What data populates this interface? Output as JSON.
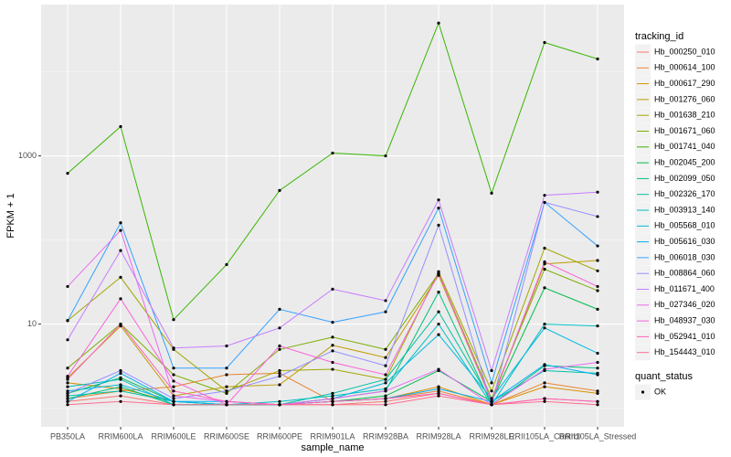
{
  "chart_data": {
    "type": "line",
    "x_label": "sample_name",
    "y_label": "FPKM + 1",
    "categories": [
      "PB350LA",
      "RRIM600LA",
      "RRIM600LE",
      "RRIM600SE",
      "RRIM600PE",
      "RRIM901LA",
      "RRIM928BA",
      "RRIM928LA",
      "RRIM928LE",
      "RRII105LA_Control",
      "RRII105LA_Stressed"
    ],
    "ylog": true,
    "ylim": [
      0.6,
      63000
    ],
    "yticks": [
      10,
      1000
    ],
    "grid": true,
    "legend_title": "tracking_id",
    "legend_position": "right",
    "status_legend_title": "quant_status",
    "status_legend_labels": [
      "OK"
    ],
    "point_color": "#000000",
    "series": [
      {
        "name": "Hb_000250_010",
        "color": "#F8766D",
        "values": [
          1.2,
          1.4,
          1.1,
          1.1,
          1.1,
          1.1,
          1.2,
          1.5,
          1.1,
          1.3,
          1.2
        ]
      },
      {
        "name": "Hb_000614_100",
        "color": "#EA8331",
        "values": [
          1.3,
          1.6,
          1.8,
          2.5,
          2.6,
          1.2,
          1.3,
          1.6,
          1.1,
          2.0,
          1.6
        ]
      },
      {
        "name": "Hb_000617_290",
        "color": "#D89000",
        "values": [
          2.0,
          1.7,
          1.2,
          1.1,
          1.1,
          1.2,
          1.3,
          1.8,
          1.1,
          1.8,
          1.5
        ]
      },
      {
        "name": "Hb_001276_060",
        "color": "#C09B00",
        "values": [
          2.3,
          9.5,
          1.4,
          1.8,
          1.9,
          5.6,
          4.0,
          38,
          1.2,
          52,
          57
        ]
      },
      {
        "name": "Hb_001638_210",
        "color": "#A3A500",
        "values": [
          11,
          36,
          5.0,
          1.6,
          2.8,
          2.9,
          2.2,
          42,
          1.6,
          80,
          43
        ]
      },
      {
        "name": "Hb_001671_060",
        "color": "#7CAE00",
        "values": [
          3.0,
          10,
          2.5,
          1.5,
          5.0,
          7.0,
          5.0,
          40,
          1.3,
          45,
          25
        ]
      },
      {
        "name": "Hb_001741_040",
        "color": "#39B600",
        "values": [
          620,
          2230,
          11.3,
          51,
          388,
          1080,
          1000,
          38000,
          360,
          22300,
          14200
        ]
      },
      {
        "name": "Hb_002045_200",
        "color": "#00BB4E",
        "values": [
          1.5,
          2.3,
          1.2,
          1.1,
          1.1,
          1.2,
          1.4,
          2.8,
          1.2,
          27,
          15
        ]
      },
      {
        "name": "Hb_002099_050",
        "color": "#00BF7D",
        "values": [
          1.3,
          1.8,
          1.1,
          1.1,
          1.1,
          1.3,
          1.6,
          24,
          1.1,
          3.2,
          3.0
        ]
      },
      {
        "name": "Hb_002326_170",
        "color": "#00C1A3",
        "values": [
          1.4,
          1.6,
          1.2,
          1.1,
          1.1,
          1.5,
          2.2,
          14,
          1.2,
          2.8,
          2.6
        ]
      },
      {
        "name": "Hb_003913_140",
        "color": "#00BFC4",
        "values": [
          1.8,
          2.2,
          1.1,
          1.1,
          1.2,
          1.4,
          1.7,
          10,
          1.1,
          10,
          9.5
        ]
      },
      {
        "name": "Hb_005568_010",
        "color": "#00BAE0",
        "values": [
          1.6,
          1.9,
          1.2,
          1.1,
          1.1,
          1.3,
          2.0,
          7.5,
          1.3,
          9,
          4.5
        ]
      },
      {
        "name": "Hb_005616_030",
        "color": "#00B0F6",
        "values": [
          1.2,
          2.6,
          1.2,
          1.2,
          1.1,
          1.2,
          1.3,
          1.7,
          1.2,
          3.3,
          2.5
        ]
      },
      {
        "name": "Hb_006018_030",
        "color": "#35A2FF",
        "values": [
          11,
          160,
          3.0,
          3.0,
          15,
          10.5,
          14,
          240,
          2.0,
          280,
          85
        ]
      },
      {
        "name": "Hb_008864_060",
        "color": "#9590FF",
        "values": [
          1.5,
          2.8,
          1.3,
          1.6,
          2.4,
          4.8,
          3.2,
          150,
          1.1,
          280,
          190
        ]
      },
      {
        "name": "Hb_011671_400",
        "color": "#C77CFF",
        "values": [
          6.5,
          75,
          5.2,
          5.5,
          9,
          26,
          19,
          300,
          2.8,
          340,
          370
        ]
      },
      {
        "name": "Hb_027346_020",
        "color": "#E76BF3",
        "values": [
          28,
          130,
          1.4,
          1.2,
          1.1,
          1.3,
          1.6,
          2.9,
          1.1,
          2.9,
          3.5
        ]
      },
      {
        "name": "Hb_048937_030",
        "color": "#FA62DB",
        "values": [
          2.4,
          20,
          2.1,
          1.1,
          5.5,
          3.5,
          2.5,
          40,
          1.2,
          55,
          28
        ]
      },
      {
        "name": "Hb_052941_010",
        "color": "#FF62BC",
        "values": [
          2.2,
          10,
          1.6,
          1.2,
          1.1,
          1.2,
          1.3,
          1.5,
          1.1,
          1.3,
          1.2
        ]
      },
      {
        "name": "Hb_154443_010",
        "color": "#FF6C91",
        "values": [
          1.1,
          1.2,
          1.1,
          1.1,
          1.1,
          1.1,
          1.1,
          1.4,
          1.1,
          1.2,
          1.1
        ]
      }
    ]
  }
}
